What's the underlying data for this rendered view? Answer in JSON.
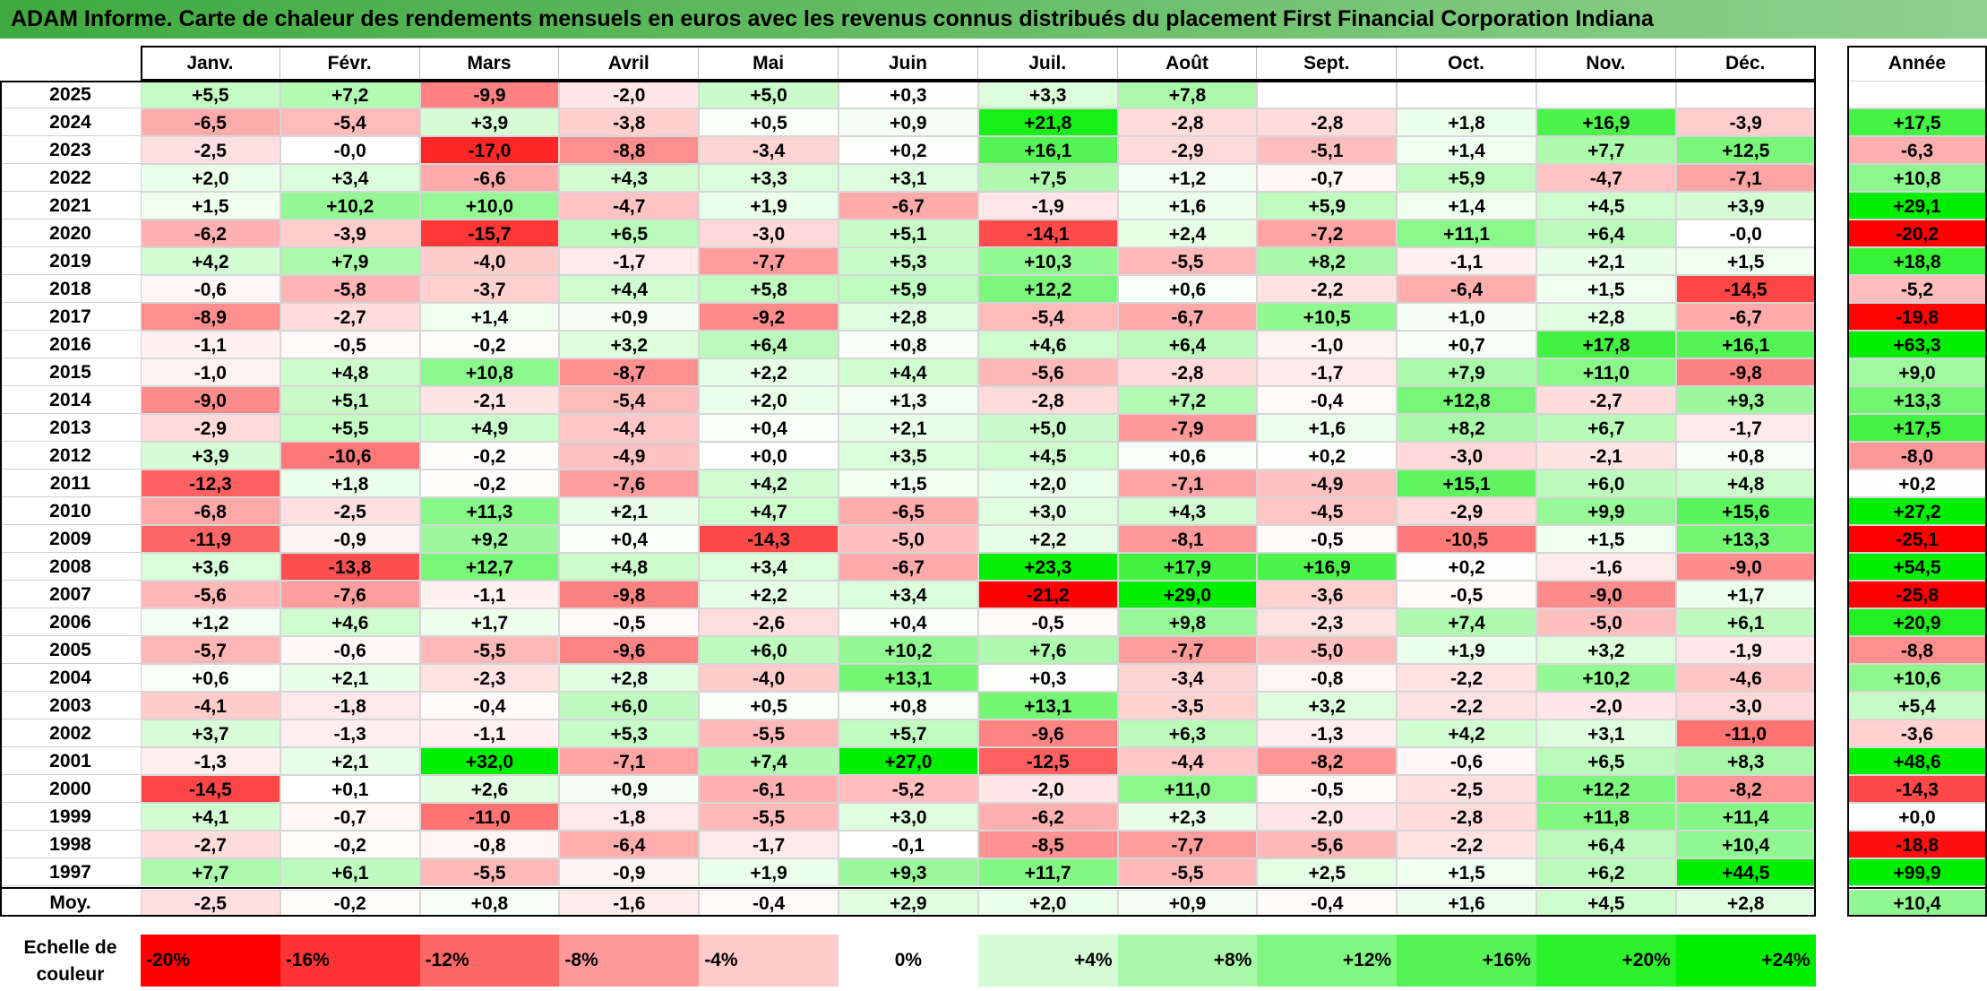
{
  "title": "ADAM Informe. Carte de chaleur des rendements mensuels en euros avec les revenus connus distribués du placement First Financial Corporation Indiana",
  "colors": {
    "negative_max": "#ff0000",
    "positive_max": "#00ee00",
    "neutral": "#ffffff",
    "title_bg": "#5cbf5c"
  },
  "chart_data": {
    "type": "heatmap",
    "title": "ADAM Informe. Carte de chaleur des rendements mensuels en euros avec les revenus connus distribués du placement First Financial Corporation Indiana",
    "months": [
      "Janv.",
      "Févr.",
      "Mars",
      "Avril",
      "Mai",
      "Juin",
      "Juil.",
      "Août",
      "Sept.",
      "Oct.",
      "Nov.",
      "Déc."
    ],
    "year_header": "Année",
    "rows": [
      {
        "year": "2025",
        "values": [
          "+5,5",
          "+7,2",
          "-9,9",
          "-2,0",
          "+5,0",
          "+0,3",
          "+3,3",
          "+7,8",
          "",
          "",
          "",
          ""
        ],
        "annual": ""
      },
      {
        "year": "2024",
        "values": [
          "-6,5",
          "-5,4",
          "+3,9",
          "-3,8",
          "+0,5",
          "+0,9",
          "+21,8",
          "-2,8",
          "-2,8",
          "+1,8",
          "+16,9",
          "-3,9"
        ],
        "annual": "+17,5"
      },
      {
        "year": "2023",
        "values": [
          "-2,5",
          "-0,0",
          "-17,0",
          "-8,8",
          "-3,4",
          "+0,2",
          "+16,1",
          "-2,9",
          "-5,1",
          "+1,4",
          "+7,7",
          "+12,5"
        ],
        "annual": "-6,3"
      },
      {
        "year": "2022",
        "values": [
          "+2,0",
          "+3,4",
          "-6,6",
          "+4,3",
          "+3,3",
          "+3,1",
          "+7,5",
          "+1,2",
          "-0,7",
          "+5,9",
          "-4,7",
          "-7,1"
        ],
        "annual": "+10,8"
      },
      {
        "year": "2021",
        "values": [
          "+1,5",
          "+10,2",
          "+10,0",
          "-4,7",
          "+1,9",
          "-6,7",
          "-1,9",
          "+1,6",
          "+5,9",
          "+1,4",
          "+4,5",
          "+3,9"
        ],
        "annual": "+29,1"
      },
      {
        "year": "2020",
        "values": [
          "-6,2",
          "-3,9",
          "-15,7",
          "+6,5",
          "-3,0",
          "+5,1",
          "-14,1",
          "+2,4",
          "-7,2",
          "+11,1",
          "+6,4",
          "-0,0"
        ],
        "annual": "-20,2"
      },
      {
        "year": "2019",
        "values": [
          "+4,2",
          "+7,9",
          "-4,0",
          "-1,7",
          "-7,7",
          "+5,3",
          "+10,3",
          "-5,5",
          "+8,2",
          "-1,1",
          "+2,1",
          "+1,5"
        ],
        "annual": "+18,8"
      },
      {
        "year": "2018",
        "values": [
          "-0,6",
          "-5,8",
          "-3,7",
          "+4,4",
          "+5,8",
          "+5,9",
          "+12,2",
          "+0,6",
          "-2,2",
          "-6,4",
          "+1,5",
          "-14,5"
        ],
        "annual": "-5,2"
      },
      {
        "year": "2017",
        "values": [
          "-8,9",
          "-2,7",
          "+1,4",
          "+0,9",
          "-9,2",
          "+2,8",
          "-5,4",
          "-6,7",
          "+10,5",
          "+1,0",
          "+2,8",
          "-6,7"
        ],
        "annual": "-19,8"
      },
      {
        "year": "2016",
        "values": [
          "-1,1",
          "-0,5",
          "-0,2",
          "+3,2",
          "+6,4",
          "+0,8",
          "+4,6",
          "+6,4",
          "-1,0",
          "+0,7",
          "+17,8",
          "+16,1"
        ],
        "annual": "+63,3"
      },
      {
        "year": "2015",
        "values": [
          "-1,0",
          "+4,8",
          "+10,8",
          "-8,7",
          "+2,2",
          "+4,4",
          "-5,6",
          "-2,8",
          "-1,7",
          "+7,9",
          "+11,0",
          "-9,8"
        ],
        "annual": "+9,0"
      },
      {
        "year": "2014",
        "values": [
          "-9,0",
          "+5,1",
          "-2,1",
          "-5,4",
          "+2,0",
          "+1,3",
          "-2,8",
          "+7,2",
          "-0,4",
          "+12,8",
          "-2,7",
          "+9,3"
        ],
        "annual": "+13,3"
      },
      {
        "year": "2013",
        "values": [
          "-2,9",
          "+5,5",
          "+4,9",
          "-4,4",
          "+0,4",
          "+2,1",
          "+5,0",
          "-7,9",
          "+1,6",
          "+8,2",
          "+6,7",
          "-1,7"
        ],
        "annual": "+17,5"
      },
      {
        "year": "2012",
        "values": [
          "+3,9",
          "-10,6",
          "-0,2",
          "-4,9",
          "+0,0",
          "+3,5",
          "+4,5",
          "+0,6",
          "+0,2",
          "-3,0",
          "-2,1",
          "+0,8"
        ],
        "annual": "-8,0"
      },
      {
        "year": "2011",
        "values": [
          "-12,3",
          "+1,8",
          "-0,2",
          "-7,6",
          "+4,2",
          "+1,5",
          "+2,0",
          "-7,1",
          "-4,9",
          "+15,1",
          "+6,0",
          "+4,8"
        ],
        "annual": "+0,2"
      },
      {
        "year": "2010",
        "values": [
          "-6,8",
          "-2,5",
          "+11,3",
          "+2,1",
          "+4,7",
          "-6,5",
          "+3,0",
          "+4,3",
          "-4,5",
          "-2,9",
          "+9,9",
          "+15,6"
        ],
        "annual": "+27,2"
      },
      {
        "year": "2009",
        "values": [
          "-11,9",
          "-0,9",
          "+9,2",
          "+0,4",
          "-14,3",
          "-5,0",
          "+2,2",
          "-8,1",
          "-0,5",
          "-10,5",
          "+1,5",
          "+13,3"
        ],
        "annual": "-25,1"
      },
      {
        "year": "2008",
        "values": [
          "+3,6",
          "-13,8",
          "+12,7",
          "+4,8",
          "+3,4",
          "-6,7",
          "+23,3",
          "+17,9",
          "+16,9",
          "+0,2",
          "-1,6",
          "-9,0"
        ],
        "annual": "+54,5"
      },
      {
        "year": "2007",
        "values": [
          "-5,6",
          "-7,6",
          "-1,1",
          "-9,8",
          "+2,2",
          "+3,4",
          "-21,2",
          "+29,0",
          "-3,6",
          "-0,5",
          "-9,0",
          "+1,7"
        ],
        "annual": "-25,8"
      },
      {
        "year": "2006",
        "values": [
          "+1,2",
          "+4,6",
          "+1,7",
          "-0,5",
          "-2,6",
          "+0,4",
          "-0,5",
          "+9,8",
          "-2,3",
          "+7,4",
          "-5,0",
          "+6,1"
        ],
        "annual": "+20,9"
      },
      {
        "year": "2005",
        "values": [
          "-5,7",
          "-0,6",
          "-5,5",
          "-9,6",
          "+6,0",
          "+10,2",
          "+7,6",
          "-7,7",
          "-5,0",
          "+1,9",
          "+3,2",
          "-1,9"
        ],
        "annual": "-8,8"
      },
      {
        "year": "2004",
        "values": [
          "+0,6",
          "+2,1",
          "-2,3",
          "+2,8",
          "-4,0",
          "+13,1",
          "+0,3",
          "-3,4",
          "-0,8",
          "-2,2",
          "+10,2",
          "-4,6"
        ],
        "annual": "+10,6"
      },
      {
        "year": "2003",
        "values": [
          "-4,1",
          "-1,8",
          "-0,4",
          "+6,0",
          "+0,5",
          "+0,8",
          "+13,1",
          "-3,5",
          "+3,2",
          "-2,2",
          "-2,0",
          "-3,0"
        ],
        "annual": "+5,4"
      },
      {
        "year": "2002",
        "values": [
          "+3,7",
          "-1,3",
          "-1,1",
          "+5,3",
          "-5,5",
          "+5,7",
          "-9,6",
          "+6,3",
          "-1,3",
          "+4,2",
          "+3,1",
          "-11,0"
        ],
        "annual": "-3,6"
      },
      {
        "year": "2001",
        "values": [
          "-1,3",
          "+2,1",
          "+32,0",
          "-7,1",
          "+7,4",
          "+27,0",
          "-12,5",
          "-4,4",
          "-8,2",
          "-0,6",
          "+6,5",
          "+8,3"
        ],
        "annual": "+48,6"
      },
      {
        "year": "2000",
        "values": [
          "-14,5",
          "+0,1",
          "+2,6",
          "+0,9",
          "-6,1",
          "-5,2",
          "-2,0",
          "+11,0",
          "-0,5",
          "-2,5",
          "+12,2",
          "-8,2"
        ],
        "annual": "-14,3"
      },
      {
        "year": "1999",
        "values": [
          "+4,1",
          "-0,7",
          "-11,0",
          "-1,8",
          "-5,5",
          "+3,0",
          "-6,2",
          "+2,3",
          "-2,0",
          "-2,8",
          "+11,8",
          "+11,4"
        ],
        "annual": "+0,0"
      },
      {
        "year": "1998",
        "values": [
          "-2,7",
          "-0,2",
          "-0,8",
          "-6,4",
          "-1,7",
          "-0,1",
          "-8,5",
          "-7,7",
          "-5,6",
          "-2,2",
          "+6,4",
          "+10,4"
        ],
        "annual": "-18,8"
      },
      {
        "year": "1997",
        "values": [
          "+7,7",
          "+6,1",
          "-5,5",
          "-0,9",
          "+1,9",
          "+9,3",
          "+11,7",
          "-5,5",
          "+2,5",
          "+1,5",
          "+6,2",
          "+44,5"
        ],
        "annual": "+99,9"
      }
    ],
    "average": {
      "label": "Moy.",
      "values": [
        "-2,5",
        "-0,2",
        "+0,8",
        "-1,6",
        "-0,4",
        "+2,9",
        "+2,0",
        "+0,9",
        "-0,4",
        "+1,6",
        "+4,5",
        "+2,8"
      ],
      "annual": "+10,4"
    },
    "scale": {
      "label_line1": "Echelle de",
      "label_line2": "couleur",
      "steps": [
        {
          "label": "-20%",
          "value": -20
        },
        {
          "label": "-16%",
          "value": -16
        },
        {
          "label": "-12%",
          "value": -12
        },
        {
          "label": "-8%",
          "value": -8
        },
        {
          "label": "-4%",
          "value": -4
        },
        {
          "label": "0%",
          "value": 0
        },
        {
          "label": "+4%",
          "value": 4
        },
        {
          "label": "+8%",
          "value": 8
        },
        {
          "label": "+12%",
          "value": 12
        },
        {
          "label": "+16%",
          "value": 16
        },
        {
          "label": "+20%",
          "value": 20
        },
        {
          "label": "+24%",
          "value": 24
        }
      ]
    },
    "color_range": {
      "min": -20,
      "max": 24
    }
  }
}
